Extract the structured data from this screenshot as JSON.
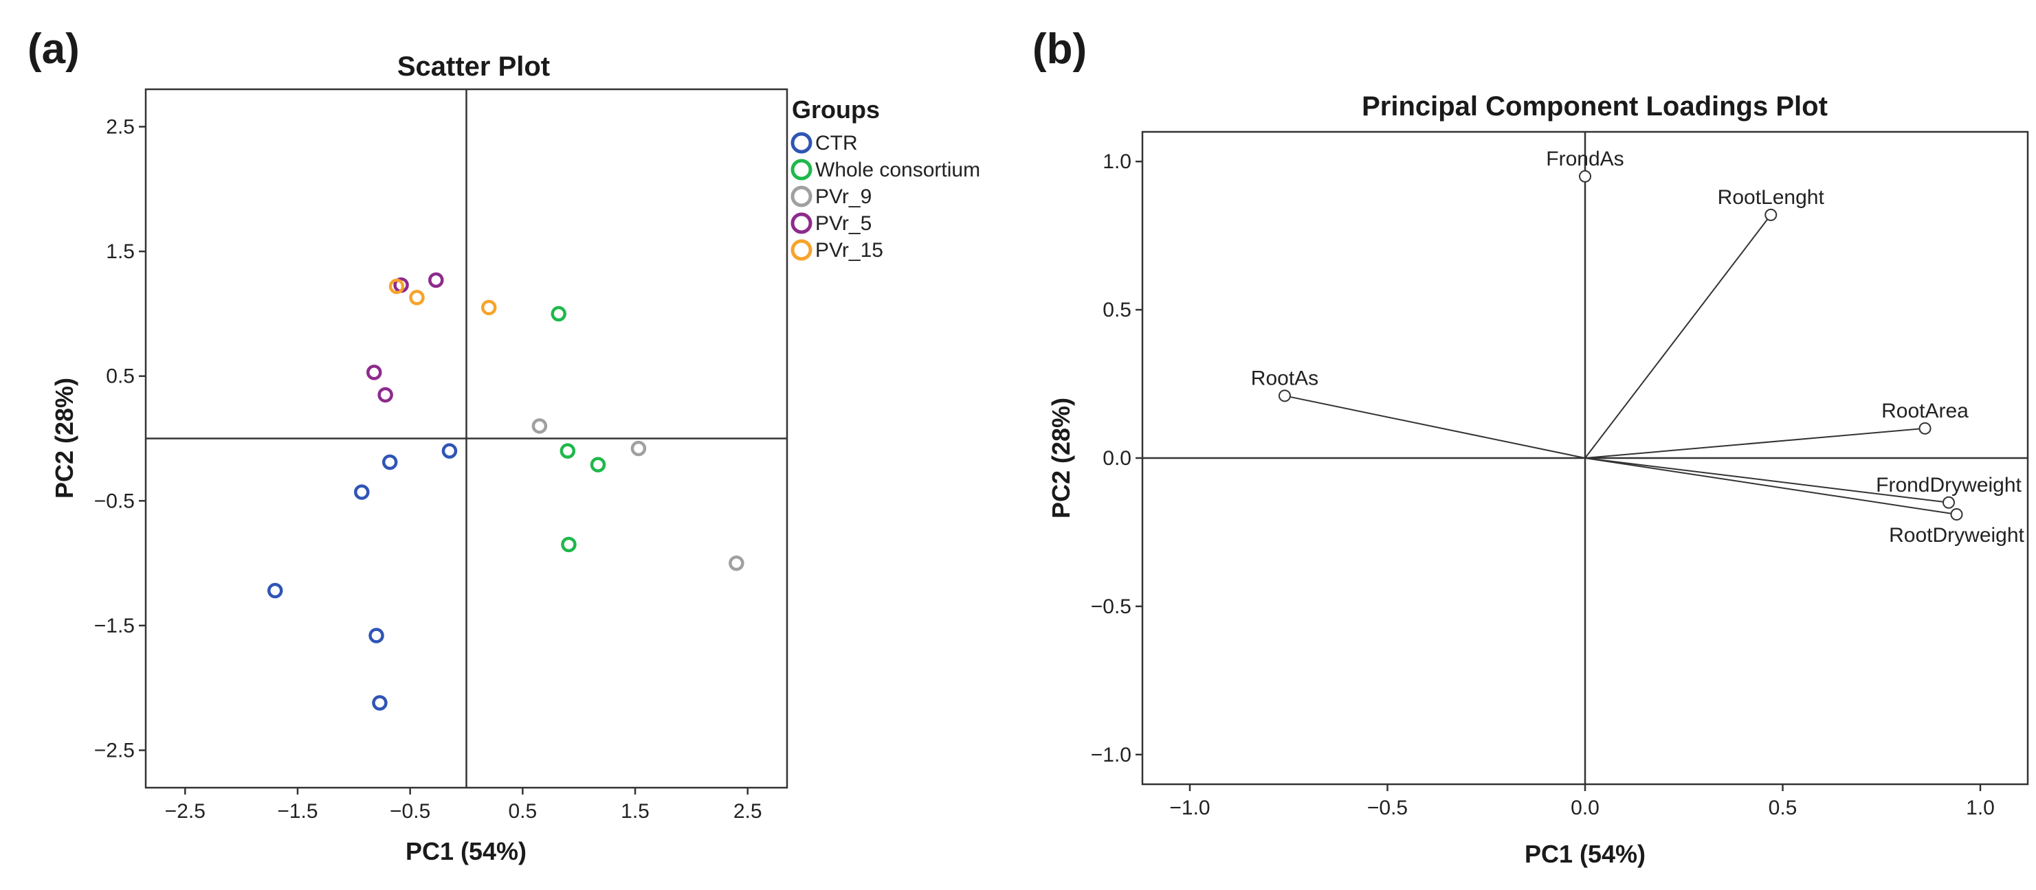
{
  "chart_data": [
    {
      "panel_label": "(a)",
      "type": "scatter",
      "title": "Scatter Plot",
      "xlabel": "PC1 (54%)",
      "ylabel": "PC2 (28%)",
      "xlim": [
        -2.85,
        2.85
      ],
      "ylim": [
        -2.8,
        2.8
      ],
      "xticks": [
        -2.5,
        -1.5,
        -0.5,
        0.5,
        1.5,
        2.5
      ],
      "yticks": [
        -2.5,
        -1.5,
        -0.5,
        0.5,
        1.5,
        2.5
      ],
      "xtick_labels": [
        "−2.5",
        "−1.5",
        "−0.5",
        "0.5",
        "1.5",
        "2.5"
      ],
      "ytick_labels": [
        "−2.5",
        "−1.5",
        "−0.5",
        "0.5",
        "1.5",
        "2.5"
      ],
      "reference_lines": {
        "x": 0,
        "y": 0
      },
      "legend_title": "Groups",
      "series": [
        {
          "name": "CTR",
          "color": "#2f55b5",
          "points": [
            [
              -1.7,
              -1.22
            ],
            [
              -0.8,
              -1.58
            ],
            [
              -0.77,
              -2.12
            ],
            [
              -0.93,
              -0.43
            ],
            [
              -0.68,
              -0.19
            ],
            [
              -0.15,
              -0.1
            ]
          ]
        },
        {
          "name": "Whole consortium",
          "color": "#1fb84b",
          "points": [
            [
              0.82,
              1.0
            ],
            [
              0.9,
              -0.1
            ],
            [
              1.17,
              -0.21
            ],
            [
              0.91,
              -0.85
            ]
          ]
        },
        {
          "name": "PVr_9",
          "color": "#a0a0a0",
          "points": [
            [
              0.65,
              0.1
            ],
            [
              1.53,
              -0.08
            ],
            [
              2.4,
              -1.0
            ]
          ]
        },
        {
          "name": "PVr_5",
          "color": "#8e2a8c",
          "points": [
            [
              -0.82,
              0.53
            ],
            [
              -0.72,
              0.35
            ],
            [
              -0.58,
              1.23
            ],
            [
              -0.27,
              1.27
            ]
          ]
        },
        {
          "name": "PVr_15",
          "color": "#f7a32b",
          "points": [
            [
              -0.62,
              1.22
            ],
            [
              -0.44,
              1.13
            ],
            [
              0.2,
              1.05
            ]
          ]
        }
      ]
    },
    {
      "panel_label": "(b)",
      "type": "loadings",
      "title": "Principal Component Loadings Plot",
      "xlabel": "PC1 (54%)",
      "ylabel": "PC2 (28%)",
      "xlim": [
        -1.12,
        1.12
      ],
      "ylim": [
        -1.1,
        1.1
      ],
      "xticks": [
        -1.0,
        -0.5,
        0.0,
        0.5,
        1.0
      ],
      "yticks": [
        1.0,
        0.5,
        0.0,
        -0.5,
        -1.0
      ],
      "xtick_labels": [
        "−1.0",
        "−0.5",
        "0.0",
        "0.5",
        "1.0"
      ],
      "ytick_labels": [
        "1.0",
        "0.5",
        "0.0",
        "−0.5",
        "−1.0"
      ],
      "reference_lines": {
        "x": 0,
        "y": 0
      },
      "loadings": [
        {
          "name": "FrondAs",
          "x": 0.0,
          "y": 0.95,
          "label_pos": "above"
        },
        {
          "name": "RootLenght",
          "x": 0.47,
          "y": 0.82,
          "label_pos": "above"
        },
        {
          "name": "RootAs",
          "x": -0.76,
          "y": 0.21,
          "label_pos": "above"
        },
        {
          "name": "RootArea",
          "x": 0.86,
          "y": 0.1,
          "label_pos": "above"
        },
        {
          "name": "FrondDryweight",
          "x": 0.92,
          "y": -0.15,
          "label_pos": "above"
        },
        {
          "name": "RootDryweight",
          "x": 0.94,
          "y": -0.19,
          "label_pos": "below"
        }
      ]
    }
  ]
}
